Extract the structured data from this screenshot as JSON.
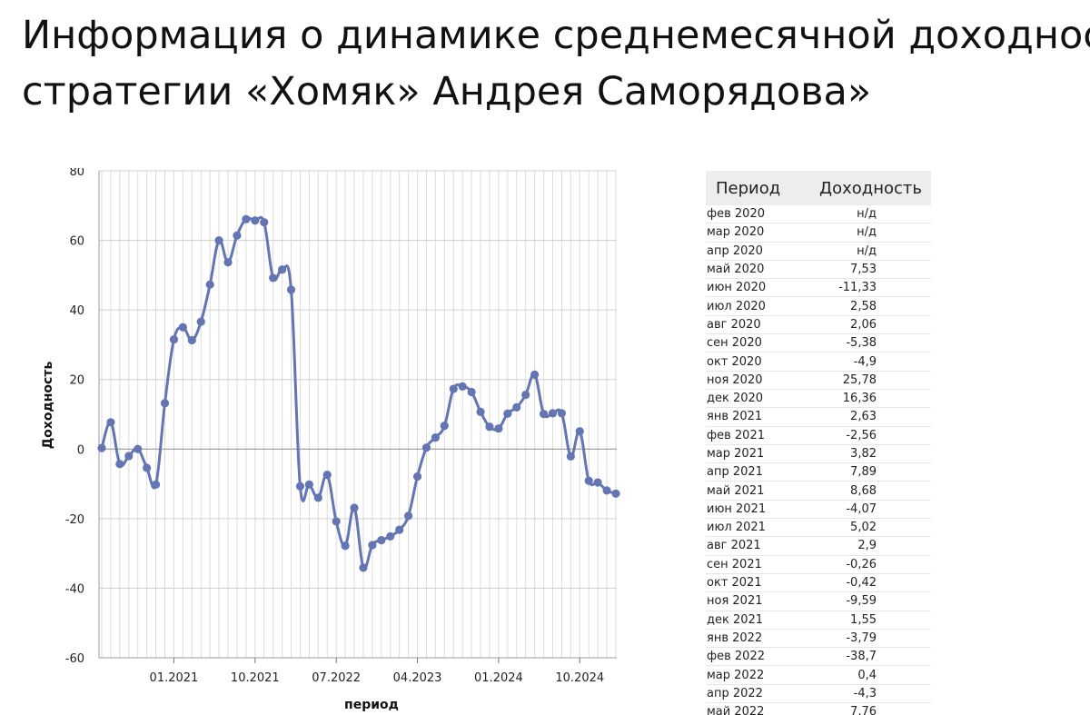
{
  "title": {
    "line1": "Информация о динамике среднемесячной доходности",
    "line2": "стратегии «Хомяк» Андрея Саморядова»"
  },
  "table": {
    "headers": [
      "Период",
      "Доходность"
    ],
    "rows": [
      [
        "фев 2020",
        "н/д"
      ],
      [
        "мар 2020",
        "н/д"
      ],
      [
        "апр 2020",
        "н/д"
      ],
      [
        "май 2020",
        "7,53"
      ],
      [
        "июн 2020",
        "-11,33"
      ],
      [
        "июл 2020",
        "2,58"
      ],
      [
        "авг 2020",
        "2,06"
      ],
      [
        "сен 2020",
        "-5,38"
      ],
      [
        "окт 2020",
        "-4,9"
      ],
      [
        "ноя 2020",
        "25,78"
      ],
      [
        "дек 2020",
        "16,36"
      ],
      [
        "янв 2021",
        "2,63"
      ],
      [
        "фев 2021",
        "-2,56"
      ],
      [
        "мар 2021",
        "3,82"
      ],
      [
        "апр 2021",
        "7,89"
      ],
      [
        "май 2021",
        "8,68"
      ],
      [
        "июн 2021",
        "-4,07"
      ],
      [
        "июл 2021",
        "5,02"
      ],
      [
        "авг 2021",
        "2,9"
      ],
      [
        "сен 2021",
        "-0,26"
      ],
      [
        "окт 2021",
        "-0,42"
      ],
      [
        "ноя 2021",
        "-9,59"
      ],
      [
        "дек 2021",
        "1,55"
      ],
      [
        "янв 2022",
        "-3,79"
      ],
      [
        "фев 2022",
        "-38,7"
      ],
      [
        "мар 2022",
        "0,4"
      ],
      [
        "апр 2022",
        "-4,3"
      ],
      [
        "май 2022",
        "7,76"
      ]
    ]
  },
  "chart_data": {
    "type": "line",
    "xlabel": "период",
    "ylabel": "Доходность",
    "ylim": [
      -60,
      80
    ],
    "yticks": [
      "80",
      "60",
      "40",
      "20",
      "0",
      "-20",
      "-40",
      "-60"
    ],
    "xticks": [
      "01.2021",
      "10.2021",
      "07.2022",
      "04.2023",
      "01.2024",
      "10.2024"
    ],
    "grid": true,
    "x_start": "05.2020",
    "color": "#6475b4",
    "values": [
      0.3,
      7.7,
      -4.3,
      -2.0,
      0.0,
      -5.4,
      -10.2,
      13.2,
      31.5,
      35.0,
      31.3,
      36.6,
      47.3,
      60.0,
      53.7,
      61.4,
      66.1,
      65.7,
      65.2,
      49.2,
      51.6,
      45.8,
      -10.7,
      -10.2,
      -14.0,
      -7.4,
      -20.8,
      -27.8,
      -16.9,
      -34.1,
      -27.6,
      -26.2,
      -25.1,
      -23.2,
      -19.2,
      -7.9,
      0.4,
      3.3,
      6.7,
      17.3,
      18.0,
      16.4,
      10.7,
      6.4,
      5.9,
      10.2,
      12.0,
      15.6,
      21.4,
      10.1,
      10.3,
      10.3,
      -2.1,
      5.1,
      -9.1,
      -9.6,
      -11.9,
      -12.8
    ]
  }
}
